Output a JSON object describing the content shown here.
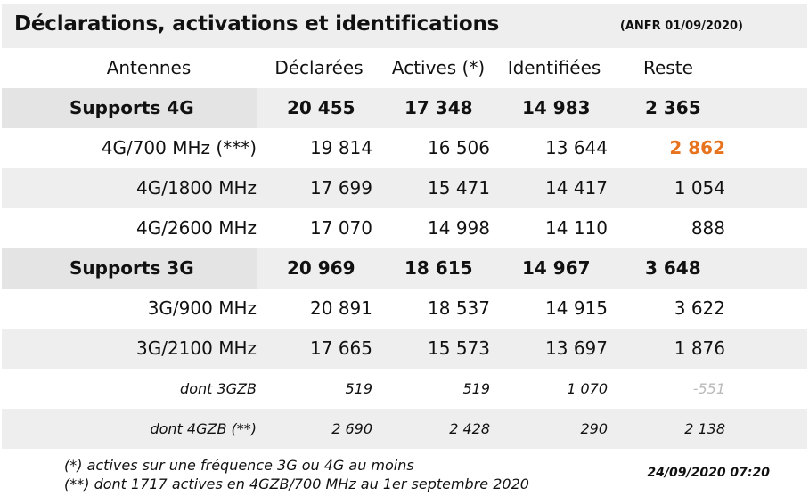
{
  "header": {
    "title": "Déclarations, activations et identifications",
    "source": "(ANFR 01/09/2020)"
  },
  "columns": [
    "Antennes",
    "Déclarées",
    "Actives (*)",
    "Identifiées",
    "Reste"
  ],
  "rows": [
    {
      "label": "Supports 4G",
      "declarees": "20 455",
      "actives": "17 348",
      "identifiees": "14 983",
      "reste": "2 365"
    },
    {
      "label": "4G/700 MHz (***)",
      "declarees": "19 814",
      "actives": "16 506",
      "identifiees": "13 644",
      "reste": "2 862"
    },
    {
      "label": "4G/1800 MHz",
      "declarees": "17 699",
      "actives": "15 471",
      "identifiees": "14 417",
      "reste": "1 054"
    },
    {
      "label": "4G/2600 MHz",
      "declarees": "17 070",
      "actives": "14 998",
      "identifiees": "14 110",
      "reste": "888"
    },
    {
      "label": "Supports 3G",
      "declarees": "20 969",
      "actives": "18 615",
      "identifiees": "14 967",
      "reste": "3 648"
    },
    {
      "label": "3G/900 MHz",
      "declarees": "20 891",
      "actives": "18 537",
      "identifiees": "14 915",
      "reste": "3 622"
    },
    {
      "label": "3G/2100 MHz",
      "declarees": "17 665",
      "actives": "15 573",
      "identifiees": "13 697",
      "reste": "1 876"
    },
    {
      "label": "dont 3GZB",
      "declarees": "519",
      "actives": "519",
      "identifiees": "1 070",
      "reste": "-551"
    },
    {
      "label": "dont 4GZB (**)",
      "declarees": "2 690",
      "actives": "2 428",
      "identifiees": "290",
      "reste": "2 138"
    }
  ],
  "footer": {
    "note1": "(*) actives sur une fréquence 3G ou 4G au moins",
    "note2": "(**) dont 1717 actives en 4GZB/700 MHz au 1er septembre 2020",
    "timestamp": "24/09/2020 07:20"
  },
  "colors": {
    "highlight": "#e8731e",
    "muted": "#bbbbbb",
    "shade": "#eeeeee"
  },
  "chart_data": {
    "type": "table",
    "title": "Déclarations, activations et identifications",
    "columns": [
      "Antennes",
      "Déclarées",
      "Actives (*)",
      "Identifiées",
      "Reste"
    ],
    "rows": [
      [
        "Supports 4G",
        20455,
        17348,
        14983,
        2365
      ],
      [
        "4G/700 MHz (***)",
        19814,
        16506,
        13644,
        2862
      ],
      [
        "4G/1800 MHz",
        17699,
        15471,
        14417,
        1054
      ],
      [
        "4G/2600 MHz",
        17070,
        14998,
        14110,
        888
      ],
      [
        "Supports 3G",
        20969,
        18615,
        14967,
        3648
      ],
      [
        "3G/900 MHz",
        20891,
        18537,
        14915,
        3622
      ],
      [
        "3G/2100 MHz",
        17665,
        15573,
        13697,
        1876
      ],
      [
        "dont 3GZB",
        519,
        519,
        1070,
        -551
      ],
      [
        "dont 4GZB (**)",
        2690,
        2428,
        290,
        2138
      ]
    ]
  }
}
